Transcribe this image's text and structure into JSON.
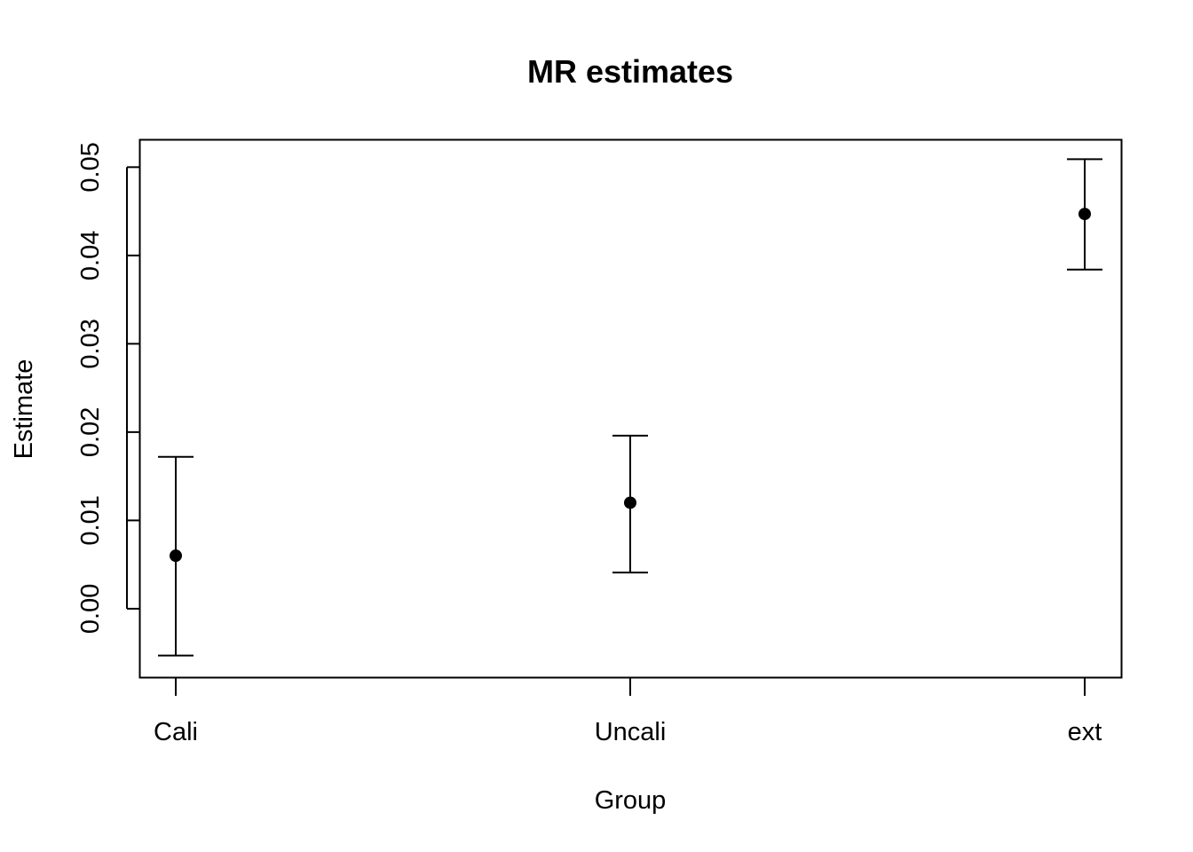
{
  "chart_data": {
    "type": "scatter",
    "title": "MR estimates",
    "xlabel": "Group",
    "ylabel": "Estimate",
    "categories": [
      "Cali",
      "Uncali",
      "ext"
    ],
    "estimates": [
      0.006,
      0.012,
      0.0447
    ],
    "ci_lower": [
      -0.0053,
      0.0041,
      0.0384
    ],
    "ci_upper": [
      0.0172,
      0.0196,
      0.0509
    ],
    "y_ticks": [
      0.0,
      0.01,
      0.02,
      0.03,
      0.04,
      0.05
    ],
    "y_tick_labels": [
      "0.00",
      "0.01",
      "0.02",
      "0.03",
      "0.04",
      "0.05"
    ],
    "ylim": [
      -0.0078,
      0.0531
    ],
    "grid": false,
    "legend": "none",
    "colors": {
      "points": "#000000",
      "lines": "#000000",
      "background": "#ffffff"
    }
  }
}
